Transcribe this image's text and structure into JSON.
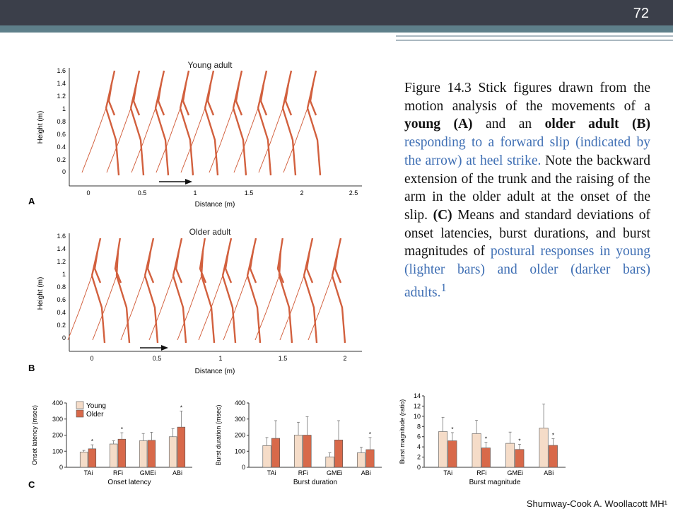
{
  "slide": {
    "number": "72",
    "credit": "Shumway-Cook A. Woollacott MH¹"
  },
  "colors": {
    "young": "#f5dcc8",
    "older": "#d8694a",
    "stick": "#d2603e",
    "caption_blue": "#3f6fb4",
    "topbar": "#3b3f4a",
    "accent": "#5e7f8a"
  },
  "caption": {
    "p1": "Figure 14.3 Stick figures drawn from the motion analysis of the movements of a ",
    "b1": "young (A)",
    "p2": " and an ",
    "b2": "older adult (B)",
    "blue1": " responding to a forward slip (indicated by the arrow) at heel strike.",
    "p3": " Note the backward extension of the trunk and the raising of the arm in the older adult at the onset of the slip. ",
    "b3": "(C)",
    "p4": " Means and standard deviations of onset latencies, burst durations, and burst magnitudes of ",
    "blue2": "postural responses in young (lighter bars) and older (darker bars) adults.",
    "sup": "1"
  },
  "panelA": {
    "letter": "A",
    "title": "Young adult",
    "ylabel": "Height (m)",
    "xlabel": "Distance (m)",
    "yticks": [
      "1.6",
      "1.4",
      "1.2",
      "1",
      "0.8",
      "0.6",
      "0.4",
      "0.2",
      "0"
    ],
    "xticks": [
      "0",
      "0.5",
      "1",
      "1.5",
      "2",
      "2.5"
    ]
  },
  "panelB": {
    "letter": "B",
    "title": "Older adult",
    "ylabel": "Height (m)",
    "xlabel": "Distance (m)",
    "yticks": [
      "1.6",
      "1.4",
      "1.2",
      "1",
      "0.8",
      "0.6",
      "0.4",
      "0.2",
      "0"
    ],
    "xticks": [
      "0",
      "0.5",
      "1",
      "1.5",
      "2"
    ]
  },
  "panelC_letter": "C",
  "chart_data": [
    {
      "type": "bar",
      "title": "Onset latency",
      "ylabel": "Onset latency (msec)",
      "ylim": [
        0,
        400
      ],
      "yticks": [
        "0",
        "100",
        "200",
        "300",
        "400"
      ],
      "categories": [
        "TAi",
        "RFi",
        "GMEi",
        "ABi"
      ],
      "legend": {
        "position": "top-left",
        "young": "Young",
        "older": "Older"
      },
      "series": [
        {
          "name": "Young",
          "values": [
            95,
            145,
            165,
            190
          ],
          "errors": [
            10,
            20,
            45,
            50
          ]
        },
        {
          "name": "Older",
          "values": [
            115,
            175,
            168,
            250
          ],
          "errors": [
            25,
            40,
            50,
            100
          ]
        }
      ],
      "significance_marks": [
        "*",
        "*",
        "",
        "*"
      ]
    },
    {
      "type": "bar",
      "title": "Burst duration",
      "ylabel": "Burst duration (msec)",
      "ylim": [
        0,
        400
      ],
      "yticks": [
        "0",
        "100",
        "200",
        "300",
        "400"
      ],
      "categories": [
        "TAi",
        "RFi",
        "GMEi",
        "ABi"
      ],
      "series": [
        {
          "values": [
            135,
            200,
            65,
            90
          ],
          "errors": [
            50,
            80,
            25,
            35
          ]
        },
        {
          "values": [
            180,
            200,
            170,
            110
          ],
          "errors": [
            110,
            115,
            120,
            75
          ]
        }
      ],
      "significance_marks": [
        "",
        "",
        "",
        "*"
      ]
    },
    {
      "type": "bar",
      "title": "Burst magnitude",
      "ylabel": "Burst magnitude (ratio)",
      "ylim": [
        0,
        14
      ],
      "yticks": [
        "0",
        "2",
        "4",
        "6",
        "8",
        "10",
        "12",
        "14"
      ],
      "categories": [
        "TAi",
        "RFi",
        "GMEi",
        "ABi"
      ],
      "series": [
        {
          "values": [
            7,
            6.6,
            4.7,
            7.7
          ],
          "errors": [
            2.8,
            2.6,
            2.2,
            4.7
          ]
        },
        {
          "values": [
            5.2,
            3.8,
            3.5,
            4.3
          ],
          "errors": [
            1.6,
            1.1,
            1.0,
            1.3
          ]
        }
      ],
      "significance_marks": [
        "*",
        "*",
        "*",
        "*"
      ]
    }
  ]
}
